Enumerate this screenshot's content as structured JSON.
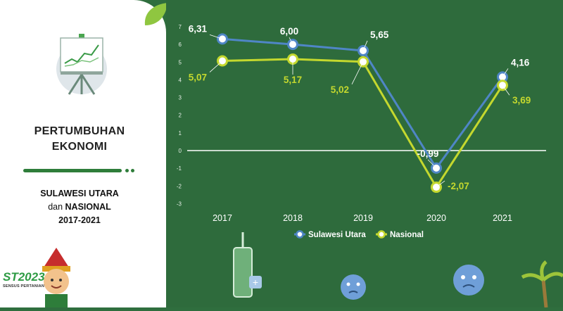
{
  "left_panel": {
    "title_line1": "PERTUMBUHAN",
    "title_line2": "EKONOMI",
    "region_line1": "SULAWESI UTARA",
    "region_line2_prefix": "dan ",
    "region_line2_bold": "NASIONAL",
    "years": "2017-2021",
    "logo_text": "ST2023",
    "logo_subtitle": "SENSUS PERTANIAN"
  },
  "colors": {
    "sulut": "#4f86c6",
    "nasional": "#c4d82e",
    "background": "#2e6b3c",
    "accent_green": "#2e7d3a"
  },
  "chart_data": {
    "type": "line",
    "title": "",
    "xlabel": "",
    "ylabel": "",
    "x": [
      "2017",
      "2018",
      "2019",
      "2020",
      "2021"
    ],
    "ylim": [
      -3,
      7
    ],
    "yticks": [
      "7",
      "6",
      "5",
      "4",
      "3",
      "2",
      "1",
      "0",
      "-1",
      "-2",
      "-3"
    ],
    "grid": false,
    "legend": "bottom",
    "series": [
      {
        "name": "Sulawesi Utara",
        "values": [
          6.31,
          6.0,
          5.65,
          -0.99,
          4.16
        ],
        "labels": [
          "6,31",
          "6,00",
          "5,65",
          "-0,99",
          "4,16"
        ]
      },
      {
        "name": "Nasional",
        "values": [
          5.07,
          5.17,
          5.02,
          -2.07,
          3.69
        ],
        "labels": [
          "5,07",
          "5,17",
          "5,02",
          "-2,07",
          "3,69"
        ]
      }
    ]
  }
}
